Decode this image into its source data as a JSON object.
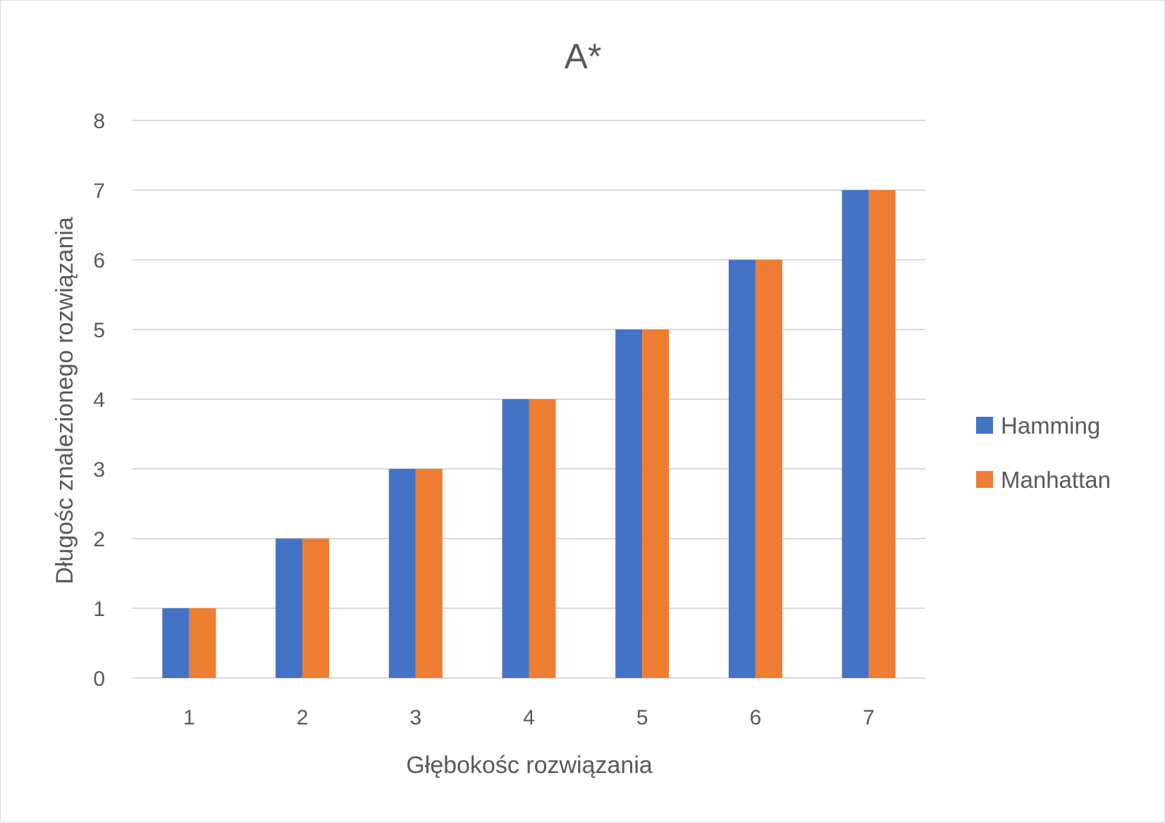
{
  "chart_data": {
    "type": "bar",
    "title": "A*",
    "xlabel": "Głębokośc rozwiązania",
    "ylabel": "Długośc znalezionego rozwiązania",
    "categories": [
      "1",
      "2",
      "3",
      "4",
      "5",
      "6",
      "7"
    ],
    "series": [
      {
        "name": "Hamming",
        "color": "#4472c4",
        "values": [
          1,
          2,
          3,
          4,
          5,
          6,
          7
        ]
      },
      {
        "name": "Manhattan",
        "color": "#ed7d31",
        "values": [
          1,
          2,
          3,
          4,
          5,
          6,
          7
        ]
      }
    ],
    "ylim": [
      0,
      8
    ],
    "yticks": [
      "0",
      "1",
      "2",
      "3",
      "4",
      "5",
      "6",
      "7",
      "8"
    ],
    "grid": true,
    "gridColor": "#d9d9d9",
    "legend": "right"
  }
}
